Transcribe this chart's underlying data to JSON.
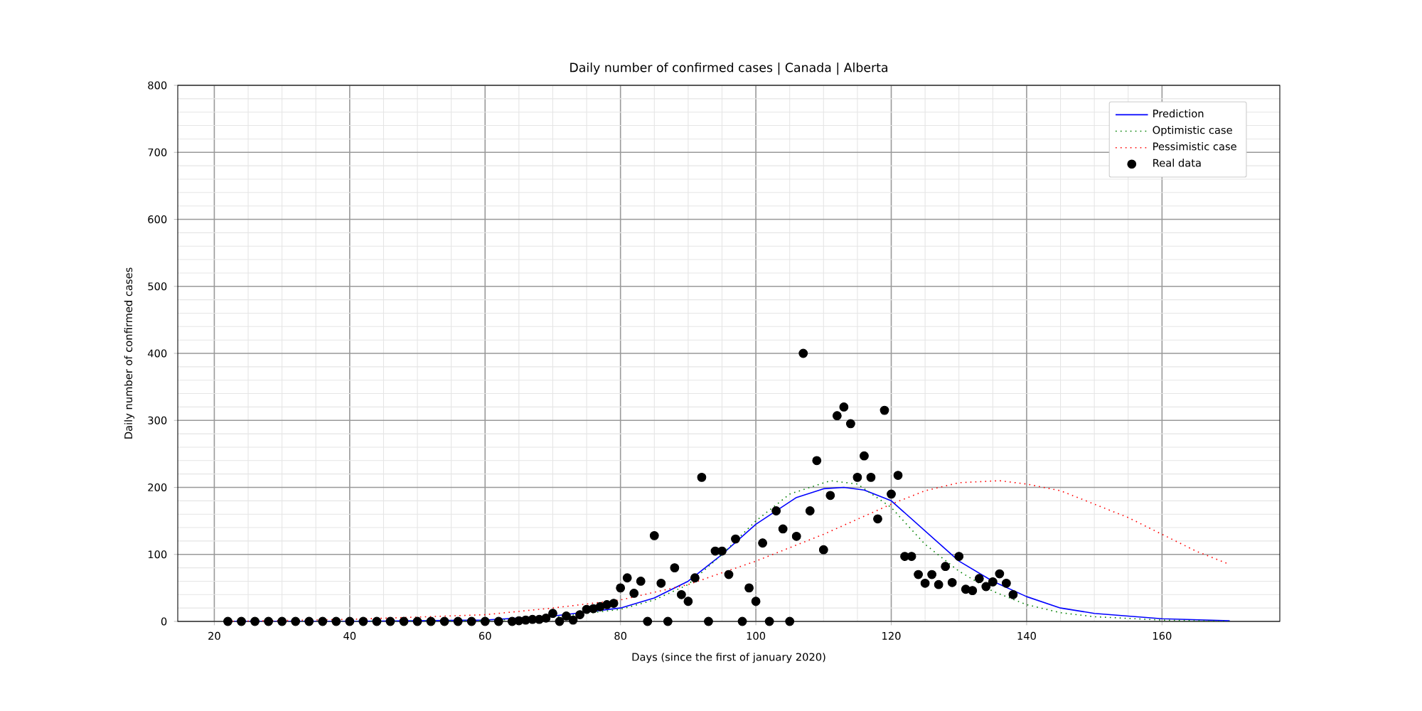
{
  "chart_data": {
    "type": "line",
    "title": "Daily number of confirmed cases | Canada | Alberta",
    "xlabel": "Days (since the first of january 2020)",
    "ylabel": "Daily number of confirmed cases",
    "xlim": [
      14.6,
      177.4
    ],
    "ylim": [
      0,
      800
    ],
    "xticks": [
      20,
      40,
      60,
      80,
      100,
      120,
      140,
      160
    ],
    "yticks": [
      0,
      100,
      200,
      300,
      400,
      500,
      600,
      700,
      800
    ],
    "grid": true,
    "legend": "top right",
    "series": [
      {
        "name": "Prediction",
        "color": "#0000ff",
        "line_style": "solid",
        "marker": "none",
        "x": [
          22,
          40,
          60,
          70,
          80,
          85,
          90,
          95,
          100,
          106,
          110,
          113,
          116,
          120,
          125,
          130,
          135,
          140,
          145,
          150,
          160,
          170
        ],
        "values": [
          0,
          0,
          2,
          8,
          20,
          35,
          60,
          100,
          145,
          185,
          198,
          200,
          196,
          180,
          135,
          90,
          60,
          37,
          20,
          12,
          4,
          1
        ]
      },
      {
        "name": "Optimistic case",
        "color": "#008000",
        "line_style": "dotted",
        "marker": "none",
        "x": [
          22,
          40,
          60,
          70,
          80,
          85,
          90,
          95,
          100,
          105,
          111,
          115,
          120,
          125,
          130,
          135,
          140,
          145,
          150,
          160,
          170
        ],
        "values": [
          0,
          0,
          1,
          6,
          18,
          32,
          55,
          100,
          150,
          190,
          210,
          205,
          170,
          115,
          75,
          45,
          25,
          13,
          7,
          2,
          0
        ]
      },
      {
        "name": "Pessimistic case",
        "color": "#ff0000",
        "line_style": "dotted",
        "marker": "none",
        "x": [
          22,
          40,
          60,
          70,
          80,
          90,
          100,
          110,
          120,
          125,
          130,
          136,
          140,
          145,
          150,
          155,
          160,
          165,
          170
        ],
        "values": [
          0,
          3,
          10,
          20,
          32,
          55,
          90,
          130,
          175,
          195,
          207,
          210,
          205,
          195,
          175,
          155,
          130,
          105,
          85
        ]
      },
      {
        "name": "Real data",
        "type": "scatter",
        "color": "#000000",
        "marker": "circle",
        "x": [
          22,
          24,
          26,
          28,
          30,
          32,
          34,
          36,
          38,
          40,
          42,
          44,
          46,
          48,
          50,
          52,
          54,
          56,
          58,
          60,
          62,
          64,
          65,
          66,
          67,
          68,
          69,
          70,
          71,
          72,
          73,
          74,
          75,
          76,
          77,
          78,
          79,
          80,
          81,
          82,
          83,
          84,
          85,
          86,
          87,
          88,
          89,
          90,
          91,
          92,
          93,
          94,
          95,
          96,
          97,
          98,
          99,
          100,
          101,
          102,
          103,
          104,
          105,
          106,
          107,
          108,
          109,
          110,
          111,
          112,
          113,
          114,
          115,
          116,
          117,
          118,
          119,
          120,
          121,
          122,
          123,
          124,
          125,
          126,
          127,
          128,
          129,
          130,
          131,
          132,
          133,
          134,
          135,
          136,
          137,
          138
        ],
        "values": [
          0,
          0,
          0,
          0,
          0,
          0,
          0,
          0,
          0,
          0,
          0,
          0,
          0,
          0,
          0,
          0,
          0,
          0,
          0,
          0,
          0,
          0,
          1,
          2,
          3,
          3,
          5,
          12,
          0,
          8,
          2,
          10,
          18,
          19,
          22,
          25,
          27,
          50,
          65,
          42,
          60,
          0,
          128,
          57,
          0,
          80,
          40,
          30,
          65,
          215,
          0,
          105,
          105,
          70,
          123,
          0,
          50,
          30,
          117,
          0,
          165,
          138,
          0,
          127,
          400,
          165,
          240,
          107,
          188,
          307,
          320,
          295,
          215,
          247,
          215,
          153,
          315,
          190,
          218,
          97,
          97,
          70,
          57,
          70,
          55,
          82,
          58,
          97,
          48,
          46,
          64,
          52,
          59,
          71,
          57,
          40
        ]
      }
    ]
  }
}
